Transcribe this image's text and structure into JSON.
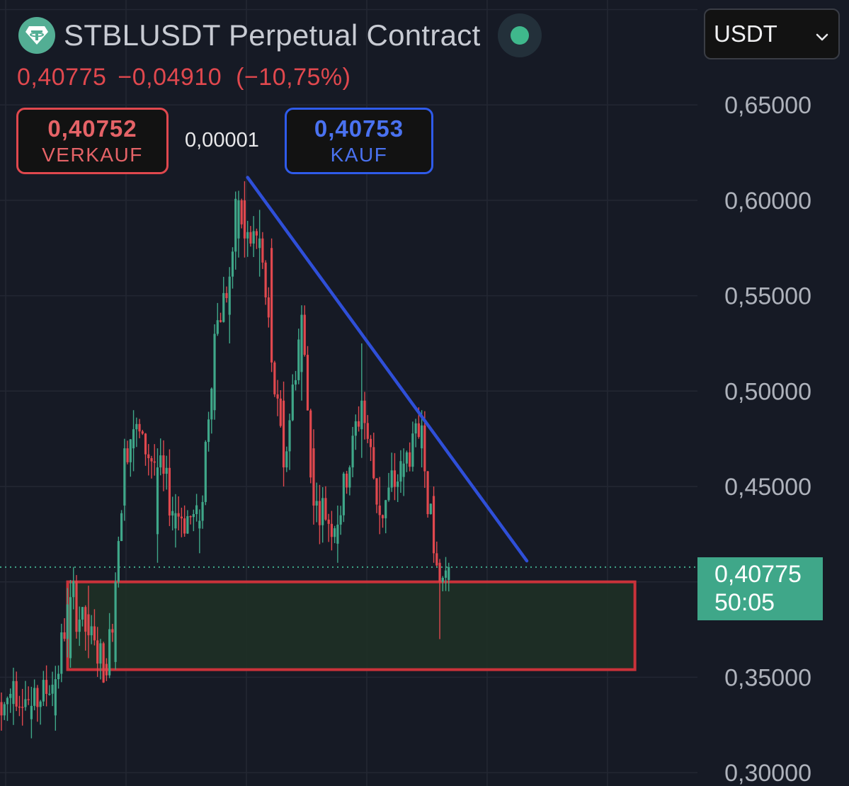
{
  "header": {
    "symbol_title": "STBLUSDT Perpetual Contract",
    "last_price": "0,40775",
    "change_abs": "−0,04910",
    "change_pct": "(−10,75%)",
    "icons": {
      "logo": "tether-logo",
      "status": "live-status-dot"
    }
  },
  "quotes": {
    "sell_price": "0,40752",
    "sell_label": "VERKAUF",
    "spread": "0,00001",
    "buy_price": "0,40753",
    "buy_label": "KAUF"
  },
  "currency_select": {
    "value": "USDT",
    "icon": "chevron-down-icon"
  },
  "current_price_label": {
    "price": "0,40775",
    "countdown": "50:05"
  },
  "colors": {
    "background": "#161a25",
    "up": "#3fa789",
    "down": "#e0484e",
    "trendline": "#2f4fd8",
    "zone_fill": "#1e3126",
    "zone_border": "#c9323a"
  },
  "chart_data": {
    "type": "candlestick",
    "y_ticks": [
      "0,65000",
      "0,60000",
      "0,55000",
      "0,50000",
      "0,45000",
      "0,35000",
      "0,30000"
    ],
    "y_tick_values": [
      0.65,
      0.6,
      0.55,
      0.5,
      0.45,
      0.35,
      0.3
    ],
    "ylim": [
      0.293,
      0.705
    ],
    "candle_count": 150,
    "grid": true,
    "last_price": 0.40775,
    "candles_approx": [
      {
        "i": 0,
        "o": 0.337,
        "h": 0.342,
        "l": 0.322,
        "c": 0.33
      },
      {
        "i": 4,
        "o": 0.336,
        "h": 0.355,
        "l": 0.325,
        "c": 0.348
      },
      {
        "i": 10,
        "o": 0.328,
        "h": 0.345,
        "l": 0.318,
        "c": 0.335
      },
      {
        "i": 18,
        "o": 0.33,
        "h": 0.356,
        "l": 0.322,
        "c": 0.349
      },
      {
        "i": 23,
        "o": 0.36,
        "h": 0.401,
        "l": 0.355,
        "c": 0.392
      },
      {
        "i": 29,
        "o": 0.383,
        "h": 0.398,
        "l": 0.36,
        "c": 0.372
      },
      {
        "i": 35,
        "o": 0.357,
        "h": 0.36,
        "l": 0.348,
        "c": 0.351
      },
      {
        "i": 38,
        "o": 0.358,
        "h": 0.405,
        "l": 0.354,
        "c": 0.4
      },
      {
        "i": 41,
        "o": 0.44,
        "h": 0.475,
        "l": 0.432,
        "c": 0.47
      },
      {
        "i": 44,
        "o": 0.47,
        "h": 0.49,
        "l": 0.458,
        "c": 0.48
      },
      {
        "i": 52,
        "o": 0.425,
        "h": 0.47,
        "l": 0.41,
        "c": 0.46
      },
      {
        "i": 58,
        "o": 0.428,
        "h": 0.446,
        "l": 0.418,
        "c": 0.436
      },
      {
        "i": 66,
        "o": 0.428,
        "h": 0.438,
        "l": 0.415,
        "c": 0.432
      },
      {
        "i": 71,
        "o": 0.49,
        "h": 0.535,
        "l": 0.485,
        "c": 0.53
      },
      {
        "i": 76,
        "o": 0.54,
        "h": 0.565,
        "l": 0.525,
        "c": 0.56
      },
      {
        "i": 79,
        "o": 0.58,
        "h": 0.605,
        "l": 0.57,
        "c": 0.6
      },
      {
        "i": 81,
        "o": 0.6,
        "h": 0.61,
        "l": 0.57,
        "c": 0.58
      },
      {
        "i": 86,
        "o": 0.575,
        "h": 0.595,
        "l": 0.56,
        "c": 0.58
      },
      {
        "i": 90,
        "o": 0.575,
        "h": 0.58,
        "l": 0.51,
        "c": 0.515
      },
      {
        "i": 94,
        "o": 0.495,
        "h": 0.505,
        "l": 0.45,
        "c": 0.46
      },
      {
        "i": 100,
        "o": 0.51,
        "h": 0.545,
        "l": 0.495,
        "c": 0.54
      },
      {
        "i": 104,
        "o": 0.47,
        "h": 0.48,
        "l": 0.43,
        "c": 0.44
      },
      {
        "i": 112,
        "o": 0.42,
        "h": 0.44,
        "l": 0.41,
        "c": 0.43
      },
      {
        "i": 120,
        "o": 0.48,
        "h": 0.525,
        "l": 0.465,
        "c": 0.495
      },
      {
        "i": 126,
        "o": 0.44,
        "h": 0.455,
        "l": 0.425,
        "c": 0.435
      },
      {
        "i": 134,
        "o": 0.455,
        "h": 0.47,
        "l": 0.445,
        "c": 0.462
      },
      {
        "i": 140,
        "o": 0.47,
        "h": 0.49,
        "l": 0.46,
        "c": 0.482
      },
      {
        "i": 144,
        "o": 0.445,
        "h": 0.45,
        "l": 0.41,
        "c": 0.415
      },
      {
        "i": 146,
        "o": 0.41,
        "h": 0.412,
        "l": 0.37,
        "c": 0.4
      },
      {
        "i": 149,
        "o": 0.401,
        "h": 0.41,
        "l": 0.395,
        "c": 0.40775
      }
    ],
    "trendline": {
      "from": {
        "candle": 82,
        "price": 0.612
      },
      "to": {
        "candle": 175,
        "price": 0.411
      }
    },
    "support_zone": {
      "from_candle": 23,
      "to_candle": 211,
      "top": 0.4,
      "bottom": 0.354
    }
  }
}
